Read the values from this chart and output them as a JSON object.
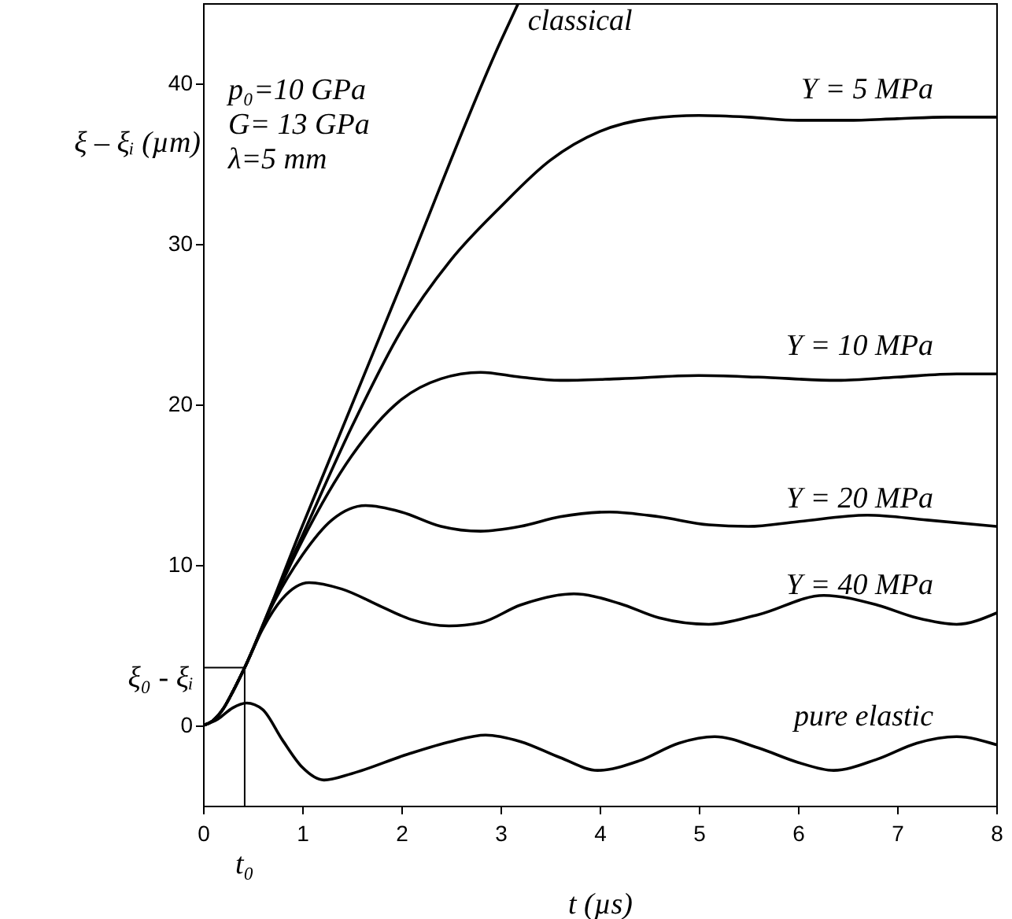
{
  "chart_data": {
    "type": "line",
    "xlabel": "t (µs)",
    "ylabel": "ξ – ξᵢ (µm)",
    "xlim": [
      0,
      8
    ],
    "ylim": [
      -5,
      45
    ],
    "xticks": [
      0,
      1,
      2,
      3,
      4,
      5,
      6,
      7,
      8
    ],
    "yticks": [
      0,
      10,
      20,
      30,
      40
    ],
    "grid": false,
    "line_style": "solid",
    "annotations": [
      "p₀=10 GPa",
      "G= 13 GPa",
      "λ=5 mm"
    ],
    "ref_lines": [
      {
        "axis": "x",
        "value": 0.42,
        "label": "t₀"
      },
      {
        "axis": "y",
        "value": 3.6,
        "label": "ξ₀ - ξᵢ"
      }
    ],
    "series": [
      {
        "name": "classical",
        "color": "#000000",
        "x": [
          0,
          0.1,
          0.2,
          0.3,
          0.42,
          1,
          2,
          3,
          3.18
        ],
        "values": [
          0,
          0.3,
          1,
          2.1,
          3.6,
          12.4,
          27.5,
          42.6,
          45
        ]
      },
      {
        "name": "Y = 5 MPa",
        "color": "#000000",
        "x": [
          0,
          0.1,
          0.2,
          0.3,
          0.42,
          0.7,
          1,
          1.5,
          2,
          2.5,
          3,
          3.5,
          4,
          4.5,
          5,
          5.5,
          6,
          6.5,
          7,
          7.5,
          8
        ],
        "values": [
          0,
          0.3,
          1,
          2.1,
          3.6,
          7.7,
          11.8,
          18.6,
          24.6,
          29,
          32.3,
          35.2,
          37,
          37.8,
          38,
          37.9,
          37.7,
          37.7,
          37.8,
          37.9,
          37.9
        ]
      },
      {
        "name": "Y = 10 MPa",
        "color": "#000000",
        "x": [
          0,
          0.1,
          0.2,
          0.3,
          0.42,
          0.7,
          1,
          1.5,
          2,
          2.4,
          2.8,
          3.2,
          3.6,
          4.2,
          5,
          5.6,
          6.4,
          7,
          7.6,
          8
        ],
        "values": [
          0,
          0.3,
          1,
          2.1,
          3.6,
          7.6,
          11.5,
          16.8,
          20.3,
          21.6,
          22,
          21.7,
          21.5,
          21.6,
          21.8,
          21.7,
          21.5,
          21.7,
          21.9,
          21.9
        ]
      },
      {
        "name": "Y = 20 MPa",
        "color": "#000000",
        "x": [
          0,
          0.1,
          0.2,
          0.3,
          0.42,
          0.7,
          1,
          1.3,
          1.64,
          2,
          2.4,
          2.8,
          3.2,
          3.6,
          4.1,
          4.6,
          5.1,
          5.5,
          6,
          6.7,
          7.3,
          8
        ],
        "values": [
          0,
          0.3,
          1,
          2.1,
          3.6,
          7.5,
          10.6,
          12.8,
          13.7,
          13.3,
          12.4,
          12.1,
          12.4,
          13,
          13.3,
          13,
          12.5,
          12.4,
          12.7,
          13.1,
          12.8,
          12.4
        ]
      },
      {
        "name": "Y = 40 MPa",
        "color": "#000000",
        "x": [
          0,
          0.1,
          0.2,
          0.3,
          0.42,
          0.6,
          0.8,
          1.07,
          1.4,
          1.8,
          2.1,
          2.48,
          2.8,
          3.2,
          3.74,
          4.2,
          4.6,
          5.1,
          5.6,
          6.26,
          6.8,
          7.2,
          7.6,
          8
        ],
        "values": [
          0,
          0.3,
          1,
          2.1,
          3.6,
          6,
          7.9,
          8.9,
          8.5,
          7.4,
          6.6,
          6.2,
          6.4,
          7.5,
          8.2,
          7.6,
          6.7,
          6.3,
          6.9,
          8.1,
          7.5,
          6.7,
          6.3,
          7
        ]
      },
      {
        "name": "pure elastic",
        "color": "#000000",
        "x": [
          0,
          0.15,
          0.3,
          0.44,
          0.6,
          0.8,
          1,
          1.22,
          1.5,
          2.06,
          2.5,
          2.85,
          3.2,
          3.6,
          3.98,
          4.4,
          4.8,
          5.16,
          5.6,
          6,
          6.36,
          6.8,
          7.2,
          7.6,
          8
        ],
        "values": [
          0,
          0.4,
          1.1,
          1.4,
          1,
          -0.9,
          -2.6,
          -3.4,
          -3,
          -1.8,
          -1,
          -0.6,
          -1,
          -2,
          -2.8,
          -2.2,
          -1.1,
          -0.7,
          -1.4,
          -2.3,
          -2.8,
          -2.1,
          -1.1,
          -0.7,
          -1.2
        ]
      }
    ]
  }
}
